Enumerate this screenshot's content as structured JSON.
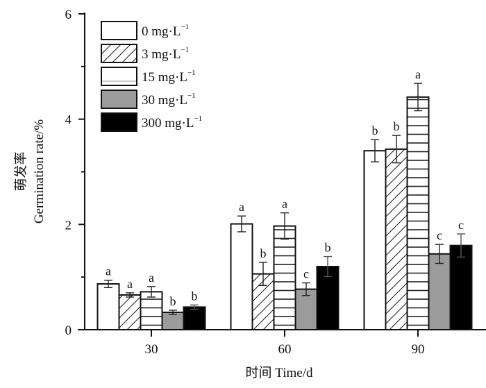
{
  "chart_data": {
    "type": "bar",
    "title": "",
    "xlabel": "时间 Time/d",
    "ylabel_cn": "萌发率",
    "ylabel": "Germination rate/%",
    "ylim": [
      0,
      6
    ],
    "yticks": [
      0,
      2,
      4,
      6
    ],
    "yticks_minor": [
      1,
      3,
      5
    ],
    "grid": false,
    "legend_position": "top-left",
    "categories": [
      "30",
      "60",
      "90"
    ],
    "series": [
      {
        "name": "0 mg·L",
        "sup": "−1",
        "pattern": "empty",
        "color": "#ffffff",
        "values": [
          0.87,
          2.01,
          3.4
        ],
        "errors": [
          0.07,
          0.15,
          0.21
        ],
        "letters": [
          "a",
          "a",
          "b"
        ]
      },
      {
        "name": "3 mg·L",
        "sup": "−1",
        "pattern": "diagonal",
        "color": "#ffffff",
        "values": [
          0.66,
          1.06,
          3.43
        ],
        "errors": [
          0.04,
          0.22,
          0.26
        ],
        "letters": [
          "a",
          "b",
          "b"
        ]
      },
      {
        "name": "15 mg·L",
        "sup": "−1",
        "pattern": "horizontal",
        "color": "#ffffff",
        "values": [
          0.72,
          1.97,
          4.42
        ],
        "errors": [
          0.1,
          0.25,
          0.26
        ],
        "letters": [
          "a",
          "a",
          "a"
        ]
      },
      {
        "name": "30 mg·L",
        "sup": "−1",
        "pattern": "solid",
        "color": "#9b9b9b",
        "values": [
          0.33,
          0.77,
          1.44
        ],
        "errors": [
          0.04,
          0.12,
          0.18
        ],
        "letters": [
          "b",
          "c",
          "c"
        ]
      },
      {
        "name": "300 mg·L",
        "sup": "−1",
        "pattern": "solid",
        "color": "#000000",
        "values": [
          0.43,
          1.2,
          1.6
        ],
        "errors": [
          0.04,
          0.19,
          0.22
        ],
        "letters": [
          "b",
          "b",
          "c"
        ]
      }
    ]
  }
}
